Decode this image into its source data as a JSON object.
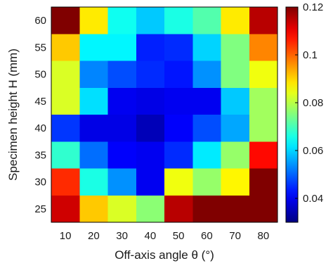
{
  "chart_data": {
    "type": "heatmap",
    "title": "",
    "xlabel": "Off-axis angle θ (°)",
    "ylabel": "Specimen height H (mm)",
    "x": [
      10,
      20,
      30,
      40,
      50,
      60,
      70,
      80
    ],
    "y": [
      25,
      30,
      35,
      40,
      45,
      50,
      55,
      60
    ],
    "x_ticks": [
      "10",
      "20",
      "30",
      "40",
      "50",
      "60",
      "70",
      "80"
    ],
    "y_ticks": [
      "25",
      "30",
      "35",
      "40",
      "45",
      "50",
      "55",
      "60"
    ],
    "colorbar": {
      "colormap": "jet",
      "range": [
        0.03,
        0.12
      ],
      "ticks": [
        0.04,
        0.06,
        0.08,
        0.1,
        0.12
      ],
      "tick_labels": [
        "0.04",
        "0.06",
        "0.08",
        "0.1",
        "0.12"
      ]
    },
    "grid": false,
    "legend": "colorbar-right",
    "values": [
      [
        0.12,
        0.088,
        0.065,
        0.059,
        0.066,
        0.071,
        0.088,
        0.115
      ],
      [
        0.091,
        0.063,
        0.063,
        0.044,
        0.045,
        0.06,
        0.075,
        0.097
      ],
      [
        0.083,
        0.053,
        0.048,
        0.045,
        0.043,
        0.054,
        0.075,
        0.085
      ],
      [
        0.083,
        0.061,
        0.04,
        0.039,
        0.04,
        0.04,
        0.059,
        0.078
      ],
      [
        0.046,
        0.039,
        0.039,
        0.035,
        0.041,
        0.048,
        0.056,
        0.078
      ],
      [
        0.068,
        0.051,
        0.041,
        0.04,
        0.045,
        0.062,
        0.077,
        0.108
      ],
      [
        0.105,
        0.066,
        0.054,
        0.04,
        0.085,
        0.077,
        0.087,
        0.12
      ],
      [
        0.113,
        0.091,
        0.083,
        0.076,
        0.115,
        0.12,
        0.12,
        0.12
      ]
    ]
  }
}
